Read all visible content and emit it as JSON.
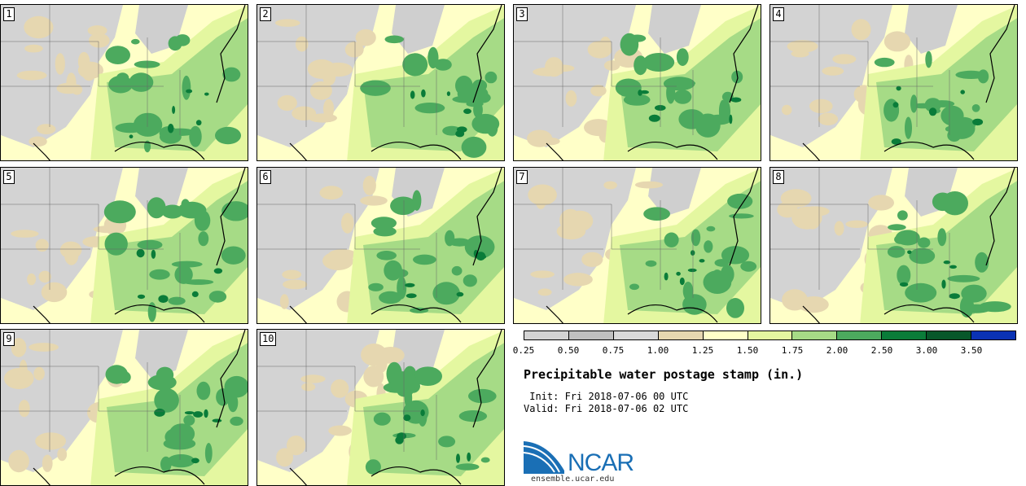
{
  "panels": [
    {
      "label": "1"
    },
    {
      "label": "2"
    },
    {
      "label": "3"
    },
    {
      "label": "4"
    },
    {
      "label": "5"
    },
    {
      "label": "6"
    },
    {
      "label": "7"
    },
    {
      "label": "8"
    },
    {
      "label": "9"
    },
    {
      "label": "10"
    }
  ],
  "legend": {
    "colors": [
      "#d3d3d3",
      "#c0c0c0",
      "#d9d9d9",
      "#e6d7b0",
      "#ffffc8",
      "#e4f7a0",
      "#a6db86",
      "#4caa5e",
      "#0a7c39",
      "#07572a",
      "#0a32b4"
    ],
    "ticks": [
      "0.25",
      "0.50",
      "0.75",
      "1.00",
      "1.25",
      "1.50",
      "1.75",
      "2.00",
      "2.50",
      "3.00",
      "3.50"
    ]
  },
  "title": "Precipitable water postage stamp (in.)",
  "init_line": " Init: Fri 2018-07-06 00 UTC",
  "valid_line": "Valid: Fri 2018-07-06 02 UTC",
  "logo_text": "NCAR",
  "url": "ensemble.ucar.edu"
}
